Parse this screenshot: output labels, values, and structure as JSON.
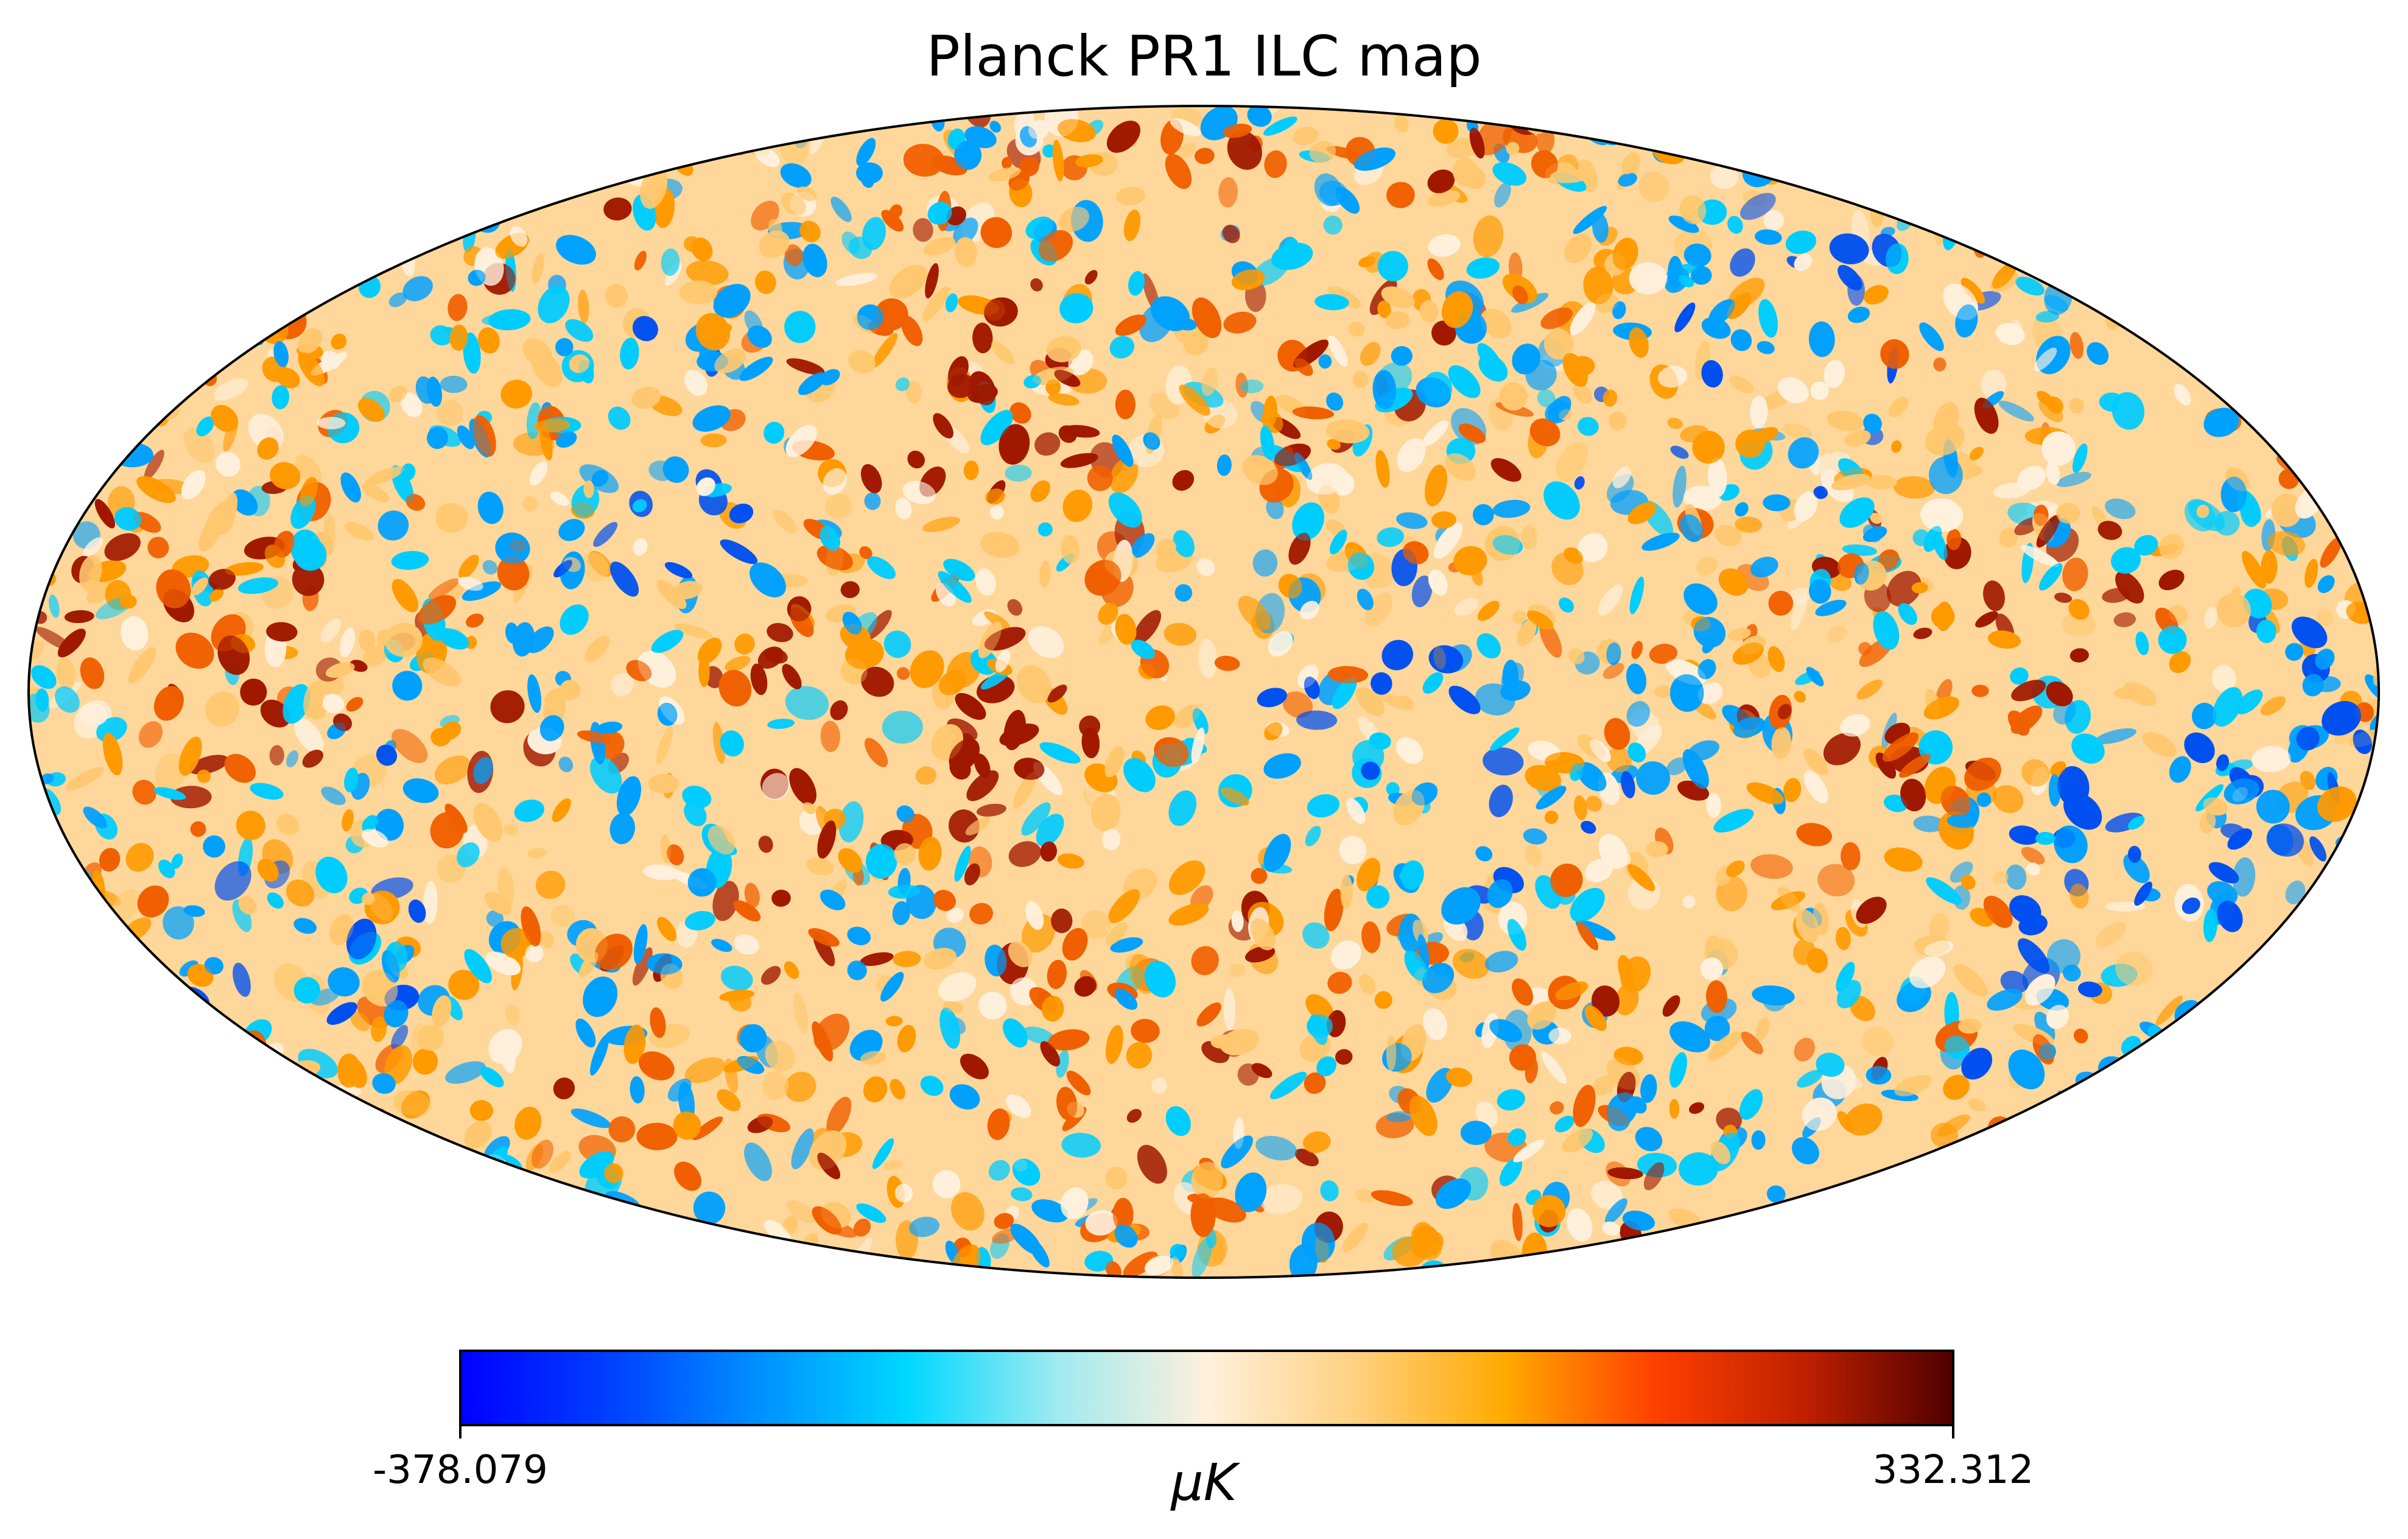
{
  "figure": {
    "title": "Planck PR1 ILC map"
  },
  "colorbar": {
    "min_label": "-378.079",
    "max_label": "332.312",
    "unit_label": "μK",
    "min_value": -378.079,
    "max_value": 332.312,
    "colors": [
      "#0000ff",
      "#0040ff",
      "#0090ff",
      "#00d8ff",
      "#a0eaf0",
      "#fff0dc",
      "#ffd080",
      "#ffaa00",
      "#ff4000",
      "#c02000",
      "#500000"
    ]
  },
  "map": {
    "projection": "mollweide",
    "palette": {
      "deep_blue": "#0050f0",
      "blue": "#00a0ff",
      "cyan": "#00ccff",
      "pale": "#fff0dc",
      "light_orange": "#ffc870",
      "orange": "#ff9a00",
      "red_orange": "#f06000",
      "dark_red": "#a01800"
    }
  }
}
